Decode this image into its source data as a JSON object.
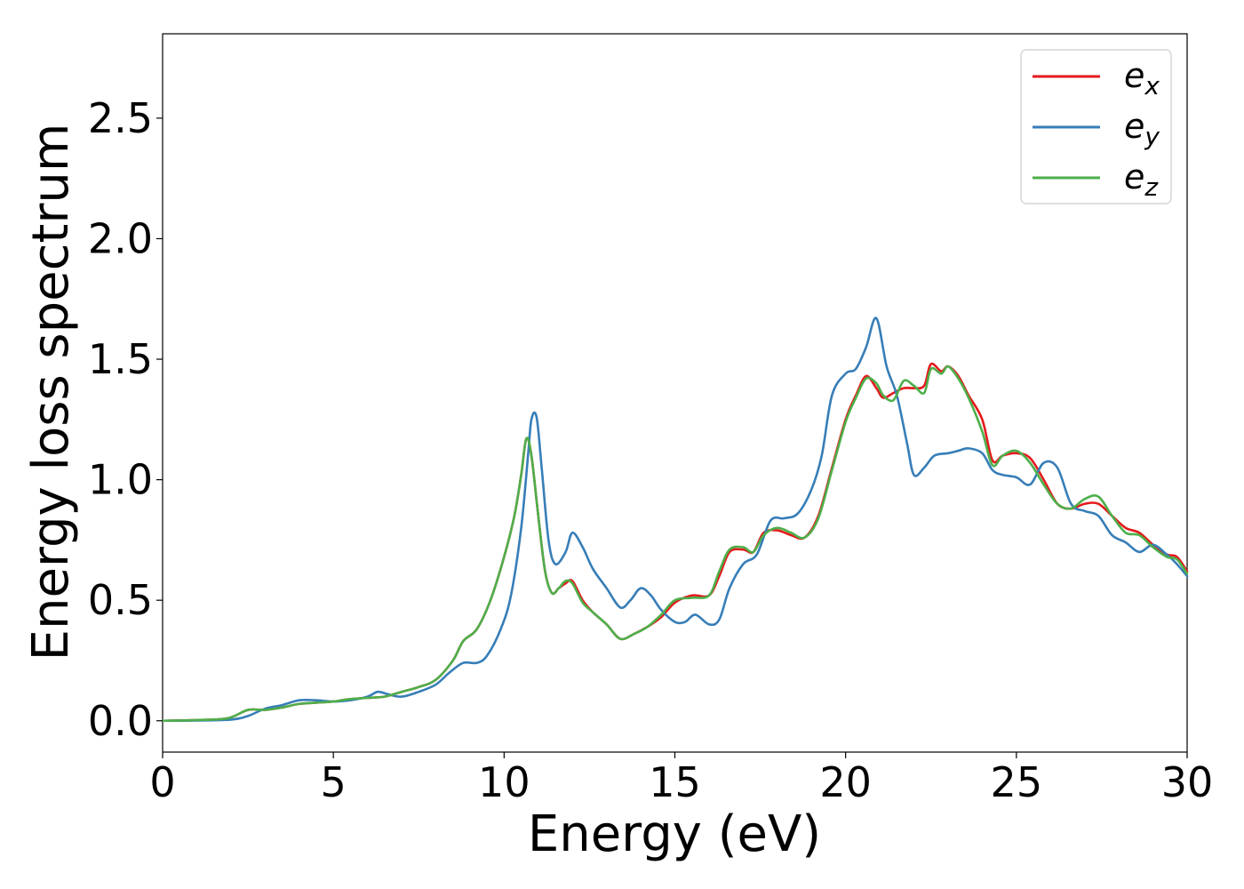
{
  "chart_data": {
    "type": "line",
    "xlabel": "Energy (eV)",
    "ylabel": "Energy loss spectrum",
    "xlim": [
      0,
      30
    ],
    "ylim": [
      -0.13,
      2.85
    ],
    "x_ticks": [
      0,
      5,
      10,
      15,
      20,
      25,
      30
    ],
    "x_tick_labels": [
      "0",
      "5",
      "10",
      "15",
      "20",
      "25",
      "30"
    ],
    "y_ticks": [
      0.0,
      0.5,
      1.0,
      1.5,
      2.0,
      2.5
    ],
    "y_tick_labels": [
      "0.0",
      "0.5",
      "1.0",
      "1.5",
      "2.0",
      "2.5"
    ],
    "grid": false,
    "legend_position": "top-right",
    "series": [
      {
        "name": "e",
        "subscript": "x",
        "color": "#e41a1c",
        "x": [
          0,
          1,
          1.9,
          2.5,
          3,
          3.5,
          4,
          4.5,
          5,
          5.5,
          6,
          6.5,
          7,
          7.5,
          8,
          8.5,
          8.8,
          9.2,
          9.6,
          10,
          10.3,
          10.5,
          10.65,
          10.8,
          11,
          11.2,
          11.4,
          11.6,
          11.8,
          12,
          12.3,
          12.6,
          13,
          13.4,
          13.8,
          14.2,
          14.6,
          15,
          15.5,
          16,
          16.3,
          16.6,
          17,
          17.3,
          17.6,
          18,
          18.4,
          18.8,
          19.2,
          19.6,
          20,
          20.3,
          20.6,
          20.9,
          21.1,
          21.4,
          21.7,
          22,
          22.3,
          22.5,
          22.8,
          23,
          23.3,
          23.6,
          24,
          24.3,
          24.6,
          25,
          25.4,
          25.8,
          26.2,
          26.6,
          27,
          27.4,
          27.8,
          28.2,
          28.6,
          29,
          29.4,
          29.7,
          30
        ],
        "y": [
          0,
          0.003,
          0.01,
          0.045,
          0.045,
          0.055,
          0.07,
          0.075,
          0.08,
          0.09,
          0.095,
          0.1,
          0.12,
          0.14,
          0.17,
          0.25,
          0.33,
          0.38,
          0.5,
          0.68,
          0.85,
          1.02,
          1.17,
          1.1,
          0.85,
          0.62,
          0.53,
          0.55,
          0.57,
          0.58,
          0.5,
          0.45,
          0.4,
          0.34,
          0.36,
          0.39,
          0.43,
          0.49,
          0.52,
          0.52,
          0.6,
          0.7,
          0.71,
          0.7,
          0.78,
          0.79,
          0.77,
          0.76,
          0.85,
          1.05,
          1.25,
          1.35,
          1.43,
          1.38,
          1.34,
          1.36,
          1.38,
          1.38,
          1.39,
          1.48,
          1.45,
          1.47,
          1.43,
          1.35,
          1.25,
          1.08,
          1.1,
          1.11,
          1.09,
          1.0,
          0.9,
          0.88,
          0.9,
          0.9,
          0.85,
          0.8,
          0.78,
          0.73,
          0.69,
          0.68,
          0.62
        ]
      },
      {
        "name": "e",
        "subscript": "y",
        "color": "#377eb8",
        "x": [
          0,
          1,
          2,
          2.5,
          3,
          3.5,
          4,
          4.5,
          5,
          5.5,
          6,
          6.3,
          6.6,
          7,
          7.5,
          8,
          8.4,
          8.8,
          9.2,
          9.5,
          9.9,
          10.2,
          10.5,
          10.7,
          10.8,
          10.95,
          11.1,
          11.3,
          11.5,
          11.8,
          12,
          12.3,
          12.6,
          13,
          13.4,
          13.7,
          14,
          14.3,
          14.6,
          15,
          15.3,
          15.6,
          16,
          16.3,
          16.6,
          17,
          17.4,
          17.8,
          18.2,
          18.6,
          19,
          19.3,
          19.6,
          20,
          20.3,
          20.6,
          20.9,
          21.2,
          21.5,
          21.8,
          22,
          22.3,
          22.6,
          23,
          23.3,
          23.6,
          24,
          24.3,
          24.6,
          25,
          25.4,
          25.8,
          26.2,
          26.6,
          27,
          27.4,
          27.8,
          28.2,
          28.6,
          29,
          29.4,
          29.7,
          30
        ],
        "y": [
          0,
          0.001,
          0.005,
          0.02,
          0.05,
          0.065,
          0.085,
          0.085,
          0.08,
          0.085,
          0.1,
          0.12,
          0.11,
          0.1,
          0.12,
          0.15,
          0.2,
          0.24,
          0.24,
          0.27,
          0.38,
          0.52,
          0.8,
          1.1,
          1.25,
          1.26,
          1.05,
          0.75,
          0.65,
          0.7,
          0.78,
          0.72,
          0.63,
          0.55,
          0.47,
          0.5,
          0.55,
          0.52,
          0.46,
          0.41,
          0.41,
          0.44,
          0.4,
          0.42,
          0.55,
          0.65,
          0.69,
          0.83,
          0.84,
          0.86,
          0.96,
          1.1,
          1.35,
          1.44,
          1.46,
          1.55,
          1.67,
          1.47,
          1.35,
          1.15,
          1.02,
          1.05,
          1.1,
          1.11,
          1.12,
          1.13,
          1.11,
          1.04,
          1.02,
          1.01,
          0.98,
          1.07,
          1.05,
          0.9,
          0.87,
          0.85,
          0.77,
          0.74,
          0.7,
          0.73,
          0.69,
          0.65,
          0.6
        ]
      },
      {
        "name": "e",
        "subscript": "z",
        "color": "#4daf4a",
        "x": [
          0,
          1,
          1.9,
          2.5,
          3,
          3.5,
          4,
          4.5,
          5,
          5.5,
          6,
          6.5,
          7,
          7.5,
          8,
          8.5,
          8.8,
          9.2,
          9.6,
          10,
          10.3,
          10.5,
          10.65,
          10.8,
          11,
          11.2,
          11.4,
          11.6,
          11.8,
          12,
          12.3,
          12.6,
          13,
          13.4,
          13.8,
          14.2,
          14.6,
          15,
          15.5,
          16,
          16.3,
          16.6,
          17,
          17.3,
          17.6,
          18,
          18.4,
          18.8,
          19.2,
          19.6,
          20,
          20.3,
          20.6,
          20.9,
          21.1,
          21.4,
          21.7,
          22,
          22.3,
          22.5,
          22.8,
          23,
          23.3,
          23.6,
          24,
          24.3,
          24.6,
          25,
          25.4,
          25.8,
          26.2,
          26.6,
          27,
          27.4,
          27.8,
          28.2,
          28.6,
          29,
          29.4,
          29.7,
          30
        ],
        "y": [
          0,
          0.003,
          0.01,
          0.045,
          0.045,
          0.055,
          0.07,
          0.075,
          0.08,
          0.09,
          0.095,
          0.1,
          0.12,
          0.14,
          0.17,
          0.25,
          0.33,
          0.38,
          0.5,
          0.68,
          0.85,
          1.02,
          1.17,
          1.1,
          0.85,
          0.62,
          0.53,
          0.55,
          0.58,
          0.57,
          0.49,
          0.45,
          0.4,
          0.34,
          0.36,
          0.39,
          0.44,
          0.5,
          0.51,
          0.52,
          0.62,
          0.71,
          0.72,
          0.7,
          0.77,
          0.8,
          0.78,
          0.76,
          0.84,
          1.04,
          1.24,
          1.34,
          1.42,
          1.4,
          1.35,
          1.33,
          1.41,
          1.39,
          1.36,
          1.46,
          1.44,
          1.47,
          1.42,
          1.34,
          1.2,
          1.06,
          1.1,
          1.12,
          1.07,
          0.98,
          0.9,
          0.88,
          0.92,
          0.93,
          0.85,
          0.78,
          0.77,
          0.72,
          0.68,
          0.67,
          0.61
        ]
      }
    ]
  }
}
